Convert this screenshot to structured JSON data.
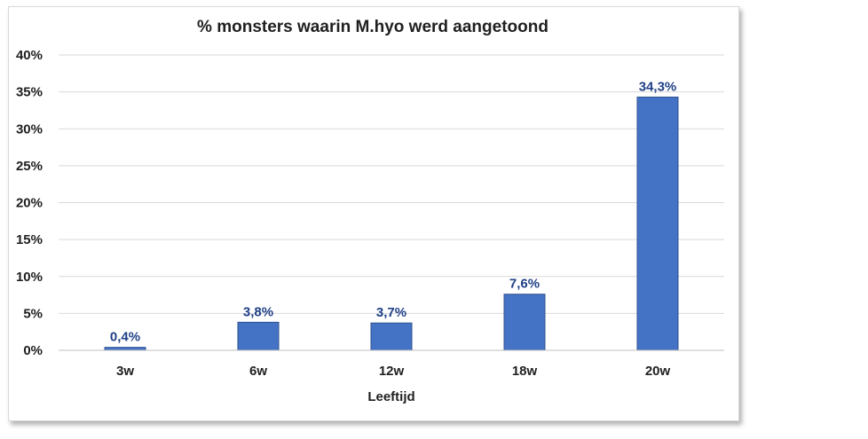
{
  "chart_data": {
    "type": "bar",
    "title": "% monsters waarin M.hyo werd aangetoond",
    "xlabel": "Leeftijd",
    "ylabel": "",
    "categories": [
      "3w",
      "6w",
      "12w",
      "18w",
      "20w"
    ],
    "values": [
      0.4,
      3.8,
      3.7,
      7.6,
      34.3
    ],
    "data_labels": [
      "0,4%",
      "3,8%",
      "3,7%",
      "7,6%",
      "34,3%"
    ],
    "ylim": [
      0,
      40
    ],
    "yticks": [
      0,
      5,
      10,
      15,
      20,
      25,
      30,
      35,
      40
    ],
    "ytick_labels": [
      "0%",
      "5%",
      "10%",
      "15%",
      "20%",
      "25%",
      "30%",
      "35%",
      "40%"
    ],
    "grid": true,
    "legend": "none",
    "bar_color": "#4472c4",
    "label_color": "#1f3f86"
  }
}
